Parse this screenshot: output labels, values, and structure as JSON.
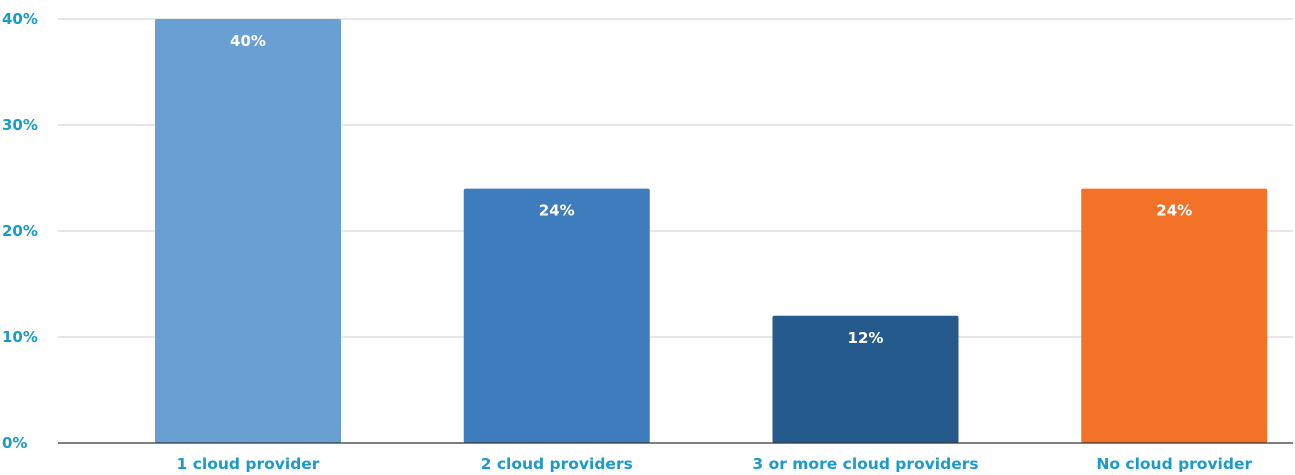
{
  "chart_data": {
    "type": "bar",
    "categories": [
      "1 cloud provider",
      "2 cloud providers",
      "3 or more cloud providers",
      "No cloud provider"
    ],
    "values": [
      40,
      24,
      12,
      24
    ],
    "data_labels": [
      "40%",
      "24%",
      "12%",
      "24%"
    ],
    "bar_colors": [
      "#6a9fd4",
      "#3e7cbe",
      "#255a8d",
      "#f27228"
    ],
    "yticks": [
      0,
      10,
      20,
      30,
      40
    ],
    "ytick_labels": [
      "0%",
      "10%",
      "20%",
      "30%",
      "40%"
    ],
    "ylim": [
      0,
      40
    ],
    "grid": true,
    "legend": "none",
    "axis_label_color": "#1a9bc9",
    "gridline_color": "#cccccc",
    "baseline_color": "#333333"
  }
}
